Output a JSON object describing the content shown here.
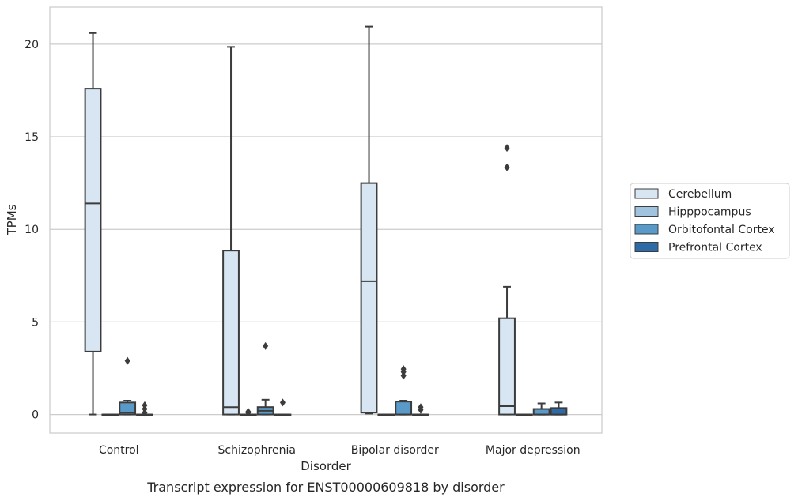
{
  "caption": "Transcript expression for ENST00000609818 by disorder",
  "chart_data": {
    "type": "box",
    "xlabel": "Disorder",
    "ylabel": "TPMs",
    "ylim": [
      -1,
      22
    ],
    "yticks": [
      0,
      5,
      10,
      15,
      20
    ],
    "grid": "horizontal",
    "legend_position": "right",
    "categories": [
      "Control",
      "Schizophrenia",
      "Bipolar disorder",
      "Major depression"
    ],
    "series": [
      {
        "name": "Cerebellum",
        "color": "#d8e5f2",
        "boxes": [
          {
            "whisker_low": 0.0,
            "q1": 3.4,
            "median": 11.4,
            "q3": 17.6,
            "whisker_high": 20.6,
            "outliers": []
          },
          {
            "whisker_low": 0.0,
            "q1": 0.0,
            "median": 0.4,
            "q3": 8.85,
            "whisker_high": 19.85,
            "outliers": []
          },
          {
            "whisker_low": 0.05,
            "q1": 0.1,
            "median": 7.2,
            "q3": 12.5,
            "whisker_high": 20.95,
            "outliers": []
          },
          {
            "whisker_low": 0.0,
            "q1": 0.0,
            "median": 0.45,
            "q3": 5.2,
            "whisker_high": 6.9,
            "outliers": [
              13.35,
              14.4
            ]
          }
        ]
      },
      {
        "name": "Hipppocampus",
        "color": "#a0c4df",
        "boxes": [
          {
            "whisker_low": 0.0,
            "q1": 0.0,
            "median": 0.0,
            "q3": 0.0,
            "whisker_high": 0.0,
            "outliers": []
          },
          {
            "whisker_low": 0.0,
            "q1": 0.0,
            "median": 0.0,
            "q3": 0.0,
            "whisker_high": 0.0,
            "outliers": [
              0.1,
              0.15
            ]
          },
          {
            "whisker_low": 0.0,
            "q1": 0.0,
            "median": 0.0,
            "q3": 0.0,
            "whisker_high": 0.0,
            "outliers": []
          },
          {
            "whisker_low": 0.0,
            "q1": 0.0,
            "median": 0.0,
            "q3": 0.0,
            "whisker_high": 0.0,
            "outliers": []
          }
        ]
      },
      {
        "name": "Orbitofontal Cortex",
        "color": "#5a9ac8",
        "boxes": [
          {
            "whisker_low": 0.0,
            "q1": 0.0,
            "median": 0.1,
            "q3": 0.65,
            "whisker_high": 0.75,
            "outliers": [
              2.9
            ]
          },
          {
            "whisker_low": 0.0,
            "q1": 0.0,
            "median": 0.2,
            "q3": 0.4,
            "whisker_high": 0.8,
            "outliers": [
              3.7
            ]
          },
          {
            "whisker_low": 0.0,
            "q1": 0.0,
            "median": 0.0,
            "q3": 0.7,
            "whisker_high": 0.75,
            "outliers": [
              2.1,
              2.3,
              2.45
            ]
          },
          {
            "whisker_low": 0.0,
            "q1": 0.0,
            "median": 0.0,
            "q3": 0.3,
            "whisker_high": 0.6,
            "outliers": []
          }
        ]
      },
      {
        "name": "Prefrontal Cortex",
        "color": "#2c6aa8",
        "boxes": [
          {
            "whisker_low": 0.0,
            "q1": 0.0,
            "median": 0.0,
            "q3": 0.0,
            "whisker_high": 0.0,
            "outliers": [
              0.1,
              0.3,
              0.5
            ]
          },
          {
            "whisker_low": 0.0,
            "q1": 0.0,
            "median": 0.0,
            "q3": 0.0,
            "whisker_high": 0.0,
            "outliers": [
              0.65
            ]
          },
          {
            "whisker_low": 0.0,
            "q1": 0.0,
            "median": 0.0,
            "q3": 0.0,
            "whisker_high": 0.0,
            "outliers": [
              0.25,
              0.4
            ]
          },
          {
            "whisker_low": 0.0,
            "q1": 0.0,
            "median": 0.0,
            "q3": 0.35,
            "whisker_high": 0.65,
            "outliers": []
          }
        ]
      }
    ]
  }
}
